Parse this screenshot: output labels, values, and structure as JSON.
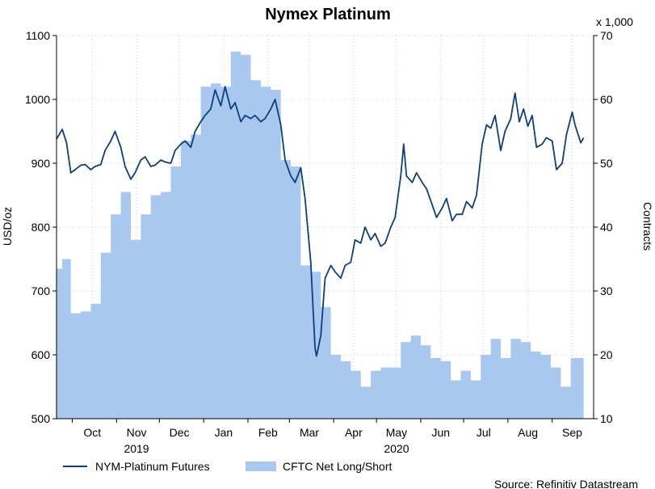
{
  "chart_data": {
    "type": "line",
    "title": "Nymex Platinum",
    "source": "Source: Refinitiv Datastream",
    "ylabel_left": "USD/oz",
    "ylabel_right": "Contracts",
    "right_axis_multiplier": "x 1,000",
    "ylim_left": [
      500,
      1100
    ],
    "ylim_right": [
      10,
      70
    ],
    "yticks_left": [
      "500",
      "600",
      "700",
      "800",
      "900",
      "1000",
      "1100"
    ],
    "yticks_right": [
      "10",
      "20",
      "30",
      "40",
      "50",
      "60",
      "70"
    ],
    "x_ticks": [
      {
        "label": "Oct",
        "date": "2019-10-15"
      },
      {
        "label": "Nov",
        "date": "2019-11-15"
      },
      {
        "label": "Dec",
        "date": "2019-12-15"
      },
      {
        "label": "Jan",
        "date": "2020-01-15"
      },
      {
        "label": "Feb",
        "date": "2020-02-15"
      },
      {
        "label": "Mar",
        "date": "2020-03-15"
      },
      {
        "label": "Apr",
        "date": "2020-04-15"
      },
      {
        "label": "May",
        "date": "2020-05-15"
      },
      {
        "label": "Jun",
        "date": "2020-06-15"
      },
      {
        "label": "Jul",
        "date": "2020-07-15"
      },
      {
        "label": "Aug",
        "date": "2020-08-15"
      },
      {
        "label": "Sep",
        "date": "2020-09-15"
      }
    ],
    "year_labels": [
      {
        "label": "2019",
        "date": "2019-11-15"
      },
      {
        "label": "2020",
        "date": "2020-05-15"
      }
    ],
    "x_range": [
      "2019-09-20",
      "2020-09-30"
    ],
    "grid": true,
    "legend_position": "bottom",
    "series": [
      {
        "name": "NYM-Platinum Futures",
        "type": "line",
        "axis": "left",
        "color": "#0d3f78",
        "points": [
          [
            "2019-09-20",
            938
          ],
          [
            "2019-09-24",
            953
          ],
          [
            "2019-09-27",
            932
          ],
          [
            "2019-09-30",
            885
          ],
          [
            "2019-10-03",
            890
          ],
          [
            "2019-10-07",
            897
          ],
          [
            "2019-10-10",
            898
          ],
          [
            "2019-10-14",
            890
          ],
          [
            "2019-10-17",
            895
          ],
          [
            "2019-10-21",
            898
          ],
          [
            "2019-10-24",
            920
          ],
          [
            "2019-10-28",
            935
          ],
          [
            "2019-10-31",
            950
          ],
          [
            "2019-11-04",
            925
          ],
          [
            "2019-11-07",
            895
          ],
          [
            "2019-11-11",
            875
          ],
          [
            "2019-11-14",
            885
          ],
          [
            "2019-11-18",
            905
          ],
          [
            "2019-11-21",
            910
          ],
          [
            "2019-11-25",
            895
          ],
          [
            "2019-11-28",
            897
          ],
          [
            "2019-12-02",
            905
          ],
          [
            "2019-12-05",
            902
          ],
          [
            "2019-12-09",
            900
          ],
          [
            "2019-12-12",
            920
          ],
          [
            "2019-12-16",
            930
          ],
          [
            "2019-12-19",
            935
          ],
          [
            "2019-12-23",
            925
          ],
          [
            "2019-12-26",
            950
          ],
          [
            "2019-12-30",
            965
          ],
          [
            "2020-01-02",
            975
          ],
          [
            "2020-01-06",
            985
          ],
          [
            "2020-01-09",
            1015
          ],
          [
            "2020-01-13",
            990
          ],
          [
            "2020-01-16",
            1020
          ],
          [
            "2020-01-20",
            985
          ],
          [
            "2020-01-23",
            995
          ],
          [
            "2020-01-27",
            965
          ],
          [
            "2020-01-30",
            975
          ],
          [
            "2020-02-03",
            970
          ],
          [
            "2020-02-06",
            975
          ],
          [
            "2020-02-10",
            965
          ],
          [
            "2020-02-13",
            970
          ],
          [
            "2020-02-17",
            985
          ],
          [
            "2020-02-20",
            1000
          ],
          [
            "2020-02-24",
            960
          ],
          [
            "2020-02-27",
            905
          ],
          [
            "2020-03-02",
            880
          ],
          [
            "2020-03-05",
            870
          ],
          [
            "2020-03-09",
            893
          ],
          [
            "2020-03-12",
            845
          ],
          [
            "2020-03-16",
            745
          ],
          [
            "2020-03-19",
            610
          ],
          [
            "2020-03-20",
            598
          ],
          [
            "2020-03-23",
            630
          ],
          [
            "2020-03-26",
            720
          ],
          [
            "2020-03-30",
            740
          ],
          [
            "2020-04-02",
            730
          ],
          [
            "2020-04-06",
            720
          ],
          [
            "2020-04-09",
            740
          ],
          [
            "2020-04-13",
            745
          ],
          [
            "2020-04-16",
            780
          ],
          [
            "2020-04-20",
            775
          ],
          [
            "2020-04-23",
            800
          ],
          [
            "2020-04-27",
            780
          ],
          [
            "2020-04-30",
            790
          ],
          [
            "2020-05-04",
            770
          ],
          [
            "2020-05-07",
            775
          ],
          [
            "2020-05-11",
            800
          ],
          [
            "2020-05-14",
            815
          ],
          [
            "2020-05-18",
            880
          ],
          [
            "2020-05-20",
            930
          ],
          [
            "2020-05-22",
            880
          ],
          [
            "2020-05-26",
            870
          ],
          [
            "2020-05-29",
            885
          ],
          [
            "2020-06-02",
            870
          ],
          [
            "2020-06-05",
            860
          ],
          [
            "2020-06-09",
            835
          ],
          [
            "2020-06-12",
            815
          ],
          [
            "2020-06-16",
            830
          ],
          [
            "2020-06-19",
            845
          ],
          [
            "2020-06-23",
            810
          ],
          [
            "2020-06-26",
            820
          ],
          [
            "2020-06-30",
            820
          ],
          [
            "2020-07-03",
            840
          ],
          [
            "2020-07-07",
            830
          ],
          [
            "2020-07-10",
            850
          ],
          [
            "2020-07-14",
            930
          ],
          [
            "2020-07-17",
            960
          ],
          [
            "2020-07-20",
            955
          ],
          [
            "2020-07-23",
            975
          ],
          [
            "2020-07-27",
            920
          ],
          [
            "2020-07-30",
            950
          ],
          [
            "2020-08-03",
            970
          ],
          [
            "2020-08-06",
            1010
          ],
          [
            "2020-08-09",
            965
          ],
          [
            "2020-08-12",
            985
          ],
          [
            "2020-08-15",
            958
          ],
          [
            "2020-08-18",
            975
          ],
          [
            "2020-08-21",
            925
          ],
          [
            "2020-08-25",
            930
          ],
          [
            "2020-08-28",
            940
          ],
          [
            "2020-09-01",
            935
          ],
          [
            "2020-09-04",
            890
          ],
          [
            "2020-09-08",
            900
          ],
          [
            "2020-09-11",
            945
          ],
          [
            "2020-09-15",
            980
          ],
          [
            "2020-09-17",
            960
          ],
          [
            "2020-09-21",
            932
          ],
          [
            "2020-09-23",
            940
          ]
        ]
      },
      {
        "name": "CFTC Net Long/Short",
        "type": "area",
        "axis": "right",
        "color": "#a8c8ef",
        "points": [
          [
            "2019-09-20",
            33.5
          ],
          [
            "2019-09-24",
            35.0
          ],
          [
            "2019-09-30",
            26.5
          ],
          [
            "2019-10-07",
            26.8
          ],
          [
            "2019-10-14",
            28.0
          ],
          [
            "2019-10-21",
            36.0
          ],
          [
            "2019-10-28",
            42.0
          ],
          [
            "2019-11-04",
            45.5
          ],
          [
            "2019-11-11",
            38.0
          ],
          [
            "2019-11-18",
            42.0
          ],
          [
            "2019-11-25",
            45.0
          ],
          [
            "2019-12-02",
            45.5
          ],
          [
            "2019-12-09",
            49.5
          ],
          [
            "2019-12-16",
            53.5
          ],
          [
            "2019-12-23",
            54.5
          ],
          [
            "2019-12-30",
            62.0
          ],
          [
            "2020-01-06",
            62.5
          ],
          [
            "2020-01-13",
            62.0
          ],
          [
            "2020-01-20",
            67.5
          ],
          [
            "2020-01-27",
            67.0
          ],
          [
            "2020-02-03",
            63.0
          ],
          [
            "2020-02-10",
            62.0
          ],
          [
            "2020-02-17",
            61.5
          ],
          [
            "2020-02-24",
            50.5
          ],
          [
            "2020-03-02",
            49.5
          ],
          [
            "2020-03-09",
            34.0
          ],
          [
            "2020-03-16",
            33.0
          ],
          [
            "2020-03-23",
            27.5
          ],
          [
            "2020-03-30",
            20.0
          ],
          [
            "2020-04-06",
            19.0
          ],
          [
            "2020-04-13",
            17.5
          ],
          [
            "2020-04-20",
            15.0
          ],
          [
            "2020-04-27",
            17.5
          ],
          [
            "2020-05-04",
            18.0
          ],
          [
            "2020-05-11",
            18.0
          ],
          [
            "2020-05-18",
            22.0
          ],
          [
            "2020-05-25",
            23.0
          ],
          [
            "2020-06-01",
            21.5
          ],
          [
            "2020-06-08",
            19.5
          ],
          [
            "2020-06-15",
            19.0
          ],
          [
            "2020-06-22",
            16.0
          ],
          [
            "2020-06-29",
            17.5
          ],
          [
            "2020-07-06",
            16.0
          ],
          [
            "2020-07-13",
            20.0
          ],
          [
            "2020-07-20",
            22.5
          ],
          [
            "2020-07-27",
            19.5
          ],
          [
            "2020-08-03",
            22.5
          ],
          [
            "2020-08-10",
            22.0
          ],
          [
            "2020-08-17",
            20.5
          ],
          [
            "2020-08-24",
            20.0
          ],
          [
            "2020-08-31",
            18.0
          ],
          [
            "2020-09-07",
            15.0
          ],
          [
            "2020-09-14",
            19.5
          ],
          [
            "2020-09-23",
            19.5
          ]
        ]
      }
    ]
  }
}
